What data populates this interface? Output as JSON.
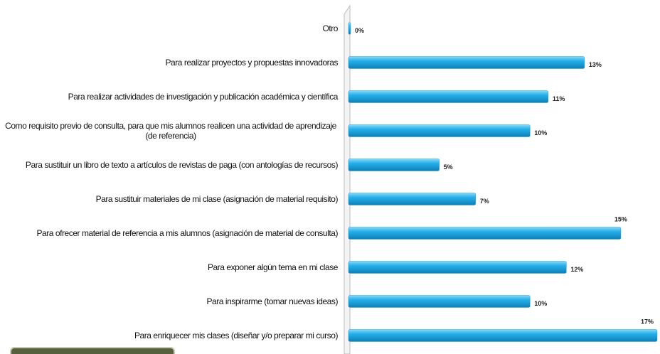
{
  "chart_data": {
    "type": "bar",
    "orientation": "horizontal",
    "categories": [
      "Otro",
      "Para realizar proyectos y propuestas innovadoras",
      "Para realizar actividades de investigación y publicación académica y científica",
      "Como requisito previo de consulta, para que mis alumnos realicen una actividad de aprendizaje (de referencia)",
      "Para sustituir un libro de texto a artículos de revistas de paga (con antologías de recursos)",
      "Para sustituir materiales de mi clase (asignación de material requisito)",
      "Para ofrecer material de referencia a mis alumnos (asignación de material de consulta)",
      "Para exponer algún tema en mi clase",
      "Para inspirarme (tomar nuevas ideas)",
      "Para enriquecer mis clases (diseñar y/o preparar mi curso)"
    ],
    "values": [
      0,
      13,
      11,
      10,
      5,
      7,
      15,
      12,
      10,
      17
    ],
    "value_labels": [
      "0%",
      "13%",
      "11%",
      "10%",
      "5%",
      "7%",
      "15%",
      "12%",
      "10%",
      "17%"
    ],
    "color": "#1aa3dc"
  }
}
